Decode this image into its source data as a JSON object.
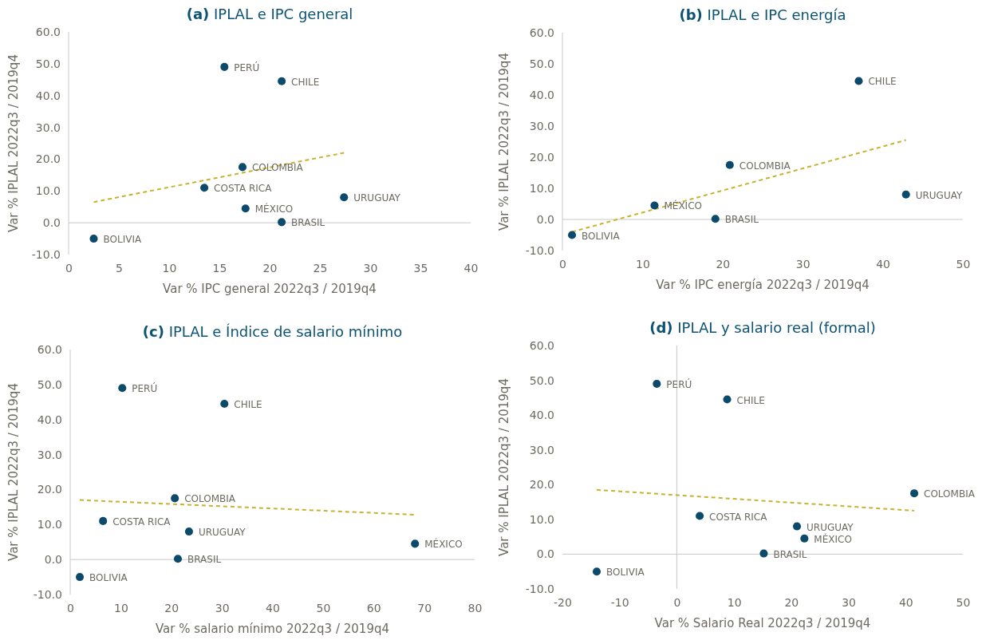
{
  "chart_data": [
    {
      "type": "scatter",
      "title": "(a) IPLAL e IPC general",
      "xlabel": "Var % IPC general 2022q3 / 2019q4",
      "ylabel": "Var % IPLAL 2022q3 / 2019q4",
      "xlim": [
        0,
        40
      ],
      "xticks": [
        0,
        5,
        10,
        15,
        20,
        25,
        30,
        35,
        40
      ],
      "ylim": [
        -10,
        60
      ],
      "yticks": [
        {
          "value": -10,
          "label": "-10.0"
        },
        {
          "value": 0,
          "label": "0.0"
        },
        {
          "value": 10,
          "label": "10.0"
        },
        {
          "value": 20,
          "label": "20.0"
        },
        {
          "value": 30,
          "label": "30.0"
        },
        {
          "value": 40,
          "label": "40.0"
        },
        {
          "value": 50,
          "label": "50.0"
        },
        {
          "value": 60,
          "label": "60.0"
        }
      ],
      "marker": "circle",
      "series": [
        {
          "color": "#0b4a6b",
          "x": [
            15.5,
            21.2,
            17.3,
            13.5,
            27.4,
            17.6,
            21.2,
            2.5
          ],
          "values": [
            49,
            44.5,
            17.5,
            11,
            8,
            4.5,
            0.2,
            -5
          ]
        },
        {
          "type": "line",
          "color": "#c8b22e",
          "line_style": "dashed",
          "marker": "none",
          "x": [
            2.5,
            27.4
          ],
          "values": [
            6.5,
            22
          ]
        }
      ],
      "annotations": [
        {
          "text": "PERÚ",
          "x": 15.5,
          "y": 49
        },
        {
          "text": "CHILE",
          "x": 21.2,
          "y": 44.5
        },
        {
          "text": "COLOMBIA",
          "x": 17.3,
          "y": 17.5
        },
        {
          "text": "COSTA RICA",
          "x": 13.5,
          "y": 11
        },
        {
          "text": "URUGUAY",
          "x": 27.4,
          "y": 8
        },
        {
          "text": "MÉXICO",
          "x": 17.6,
          "y": 4.5
        },
        {
          "text": "BRASIL",
          "x": 21.2,
          "y": 0.2
        },
        {
          "text": "BOLIVIA",
          "x": 2.5,
          "y": -5
        }
      ]
    },
    {
      "type": "scatter",
      "title": "(b) IPLAL e IPC energía",
      "xlabel": "Var % IPC energía 2022q3 / 2019q4",
      "ylabel": "Var % IPLAL 2022q3 / 2019q4",
      "xlim": [
        0,
        50
      ],
      "xticks": [
        0,
        10,
        20,
        30,
        40,
        50
      ],
      "ylim": [
        -10,
        60
      ],
      "yticks": [
        {
          "value": -10,
          "label": "-10.0"
        },
        {
          "value": 0,
          "label": "0.0"
        },
        {
          "value": 10,
          "label": "10.0"
        },
        {
          "value": 20,
          "label": "20.0"
        },
        {
          "value": 30,
          "label": "30.0"
        },
        {
          "value": 40,
          "label": "40.0"
        },
        {
          "value": 50,
          "label": "50.0"
        },
        {
          "value": 60,
          "label": "60.0"
        }
      ],
      "marker": "circle",
      "series": [
        {
          "color": "#0b4a6b",
          "x": [
            37,
            20.9,
            42.9,
            11.5,
            19.1,
            1.2
          ],
          "values": [
            44.5,
            17.5,
            8,
            4.5,
            0.2,
            -5
          ]
        },
        {
          "type": "line",
          "color": "#c8b22e",
          "line_style": "dashed",
          "marker": "none",
          "x": [
            1.2,
            42.9
          ],
          "values": [
            -4,
            25.5
          ]
        }
      ],
      "annotations": [
        {
          "text": "CHILE",
          "x": 37,
          "y": 44.5
        },
        {
          "text": "COLOMBIA",
          "x": 20.9,
          "y": 17.5
        },
        {
          "text": "URUGUAY",
          "x": 42.9,
          "y": 8
        },
        {
          "text": "MÉXICO",
          "x": 11.5,
          "y": 4.5
        },
        {
          "text": "BRASIL",
          "x": 19.1,
          "y": 0.2
        },
        {
          "text": "BOLIVIA",
          "x": 1.2,
          "y": -5
        }
      ]
    },
    {
      "type": "scatter",
      "title": "(c) IPLAL e Índice de salario mínimo",
      "xlabel": "Var % salario mínimo 2022q3 / 2019q4",
      "ylabel": "Var % IPLAL 2022q3 / 2019q4",
      "xlim": [
        0,
        80
      ],
      "xticks": [
        0,
        10,
        20,
        30,
        40,
        50,
        60,
        70,
        80
      ],
      "ylim": [
        -10,
        60
      ],
      "yticks": [
        {
          "value": -10,
          "label": "-10.0"
        },
        {
          "value": 0,
          "label": "0.0"
        },
        {
          "value": 10,
          "label": "10.0"
        },
        {
          "value": 20,
          "label": "20.0"
        },
        {
          "value": 30,
          "label": "30.0"
        },
        {
          "value": 40,
          "label": "40.0"
        },
        {
          "value": 50,
          "label": "50.0"
        },
        {
          "value": 60,
          "label": "60.0"
        }
      ],
      "marker": "circle",
      "series": [
        {
          "color": "#0b4a6b",
          "x": [
            10.3,
            30.5,
            20.7,
            6.5,
            23.5,
            68.2,
            21.3,
            1.9
          ],
          "values": [
            49,
            44.5,
            17.5,
            11,
            8,
            4.5,
            0.2,
            -5
          ]
        },
        {
          "type": "line",
          "color": "#c8b22e",
          "line_style": "dashed",
          "marker": "none",
          "x": [
            1.9,
            68.2
          ],
          "values": [
            17,
            12.8
          ]
        }
      ],
      "annotations": [
        {
          "text": "PERÚ",
          "x": 10.3,
          "y": 49
        },
        {
          "text": "CHILE",
          "x": 30.5,
          "y": 44.5
        },
        {
          "text": "COLOMBIA",
          "x": 20.7,
          "y": 17.5
        },
        {
          "text": "COSTA RICA",
          "x": 6.5,
          "y": 11
        },
        {
          "text": "URUGUAY",
          "x": 23.5,
          "y": 8
        },
        {
          "text": "MÉXICO",
          "x": 68.2,
          "y": 4.5
        },
        {
          "text": "BRASIL",
          "x": 21.3,
          "y": 0.2
        },
        {
          "text": "BOLIVIA",
          "x": 1.9,
          "y": -5
        }
      ]
    },
    {
      "type": "scatter",
      "title": "(d) IPLAL y salario real (formal)",
      "xlabel": "Var % Salario Real 2022q3 / 2019q4",
      "ylabel": "Var % IPLAL 2022q3 / 2019q4",
      "xlim": [
        -20,
        50
      ],
      "xticks": [
        -20,
        -10,
        0,
        10,
        20,
        30,
        40,
        50
      ],
      "ylim": [
        -10,
        60
      ],
      "yticks": [
        {
          "value": -10,
          "label": "-10.0"
        },
        {
          "value": 0,
          "label": "0.0"
        },
        {
          "value": 10,
          "label": "10.0"
        },
        {
          "value": 20,
          "label": "20.0"
        },
        {
          "value": 30,
          "label": "30.0"
        },
        {
          "value": 40,
          "label": "40.0"
        },
        {
          "value": 50,
          "label": "50.0"
        },
        {
          "value": 60,
          "label": "60.0"
        }
      ],
      "marker": "circle",
      "series": [
        {
          "color": "#0b4a6b",
          "x": [
            -3.5,
            8.8,
            41.5,
            4,
            21,
            22.3,
            15.2,
            -14
          ],
          "values": [
            49,
            44.5,
            17.5,
            11,
            8,
            4.5,
            0.2,
            -5
          ]
        },
        {
          "type": "line",
          "color": "#c8b22e",
          "line_style": "dashed",
          "marker": "none",
          "x": [
            -14,
            41.5
          ],
          "values": [
            18.5,
            12.5
          ]
        }
      ],
      "annotations": [
        {
          "text": "PERÚ",
          "x": -3.5,
          "y": 49
        },
        {
          "text": "CHILE",
          "x": 8.8,
          "y": 44.5
        },
        {
          "text": "COLOMBIA",
          "x": 41.5,
          "y": 17.5
        },
        {
          "text": "COSTA RICA",
          "x": 4,
          "y": 11
        },
        {
          "text": "URUGUAY",
          "x": 21,
          "y": 8
        },
        {
          "text": "MÉXICO",
          "x": 22.3,
          "y": 4.5
        },
        {
          "text": "BRASIL",
          "x": 15.2,
          "y": 0.2
        },
        {
          "text": "BOLIVIA",
          "x": -14,
          "y": -5
        }
      ]
    }
  ]
}
